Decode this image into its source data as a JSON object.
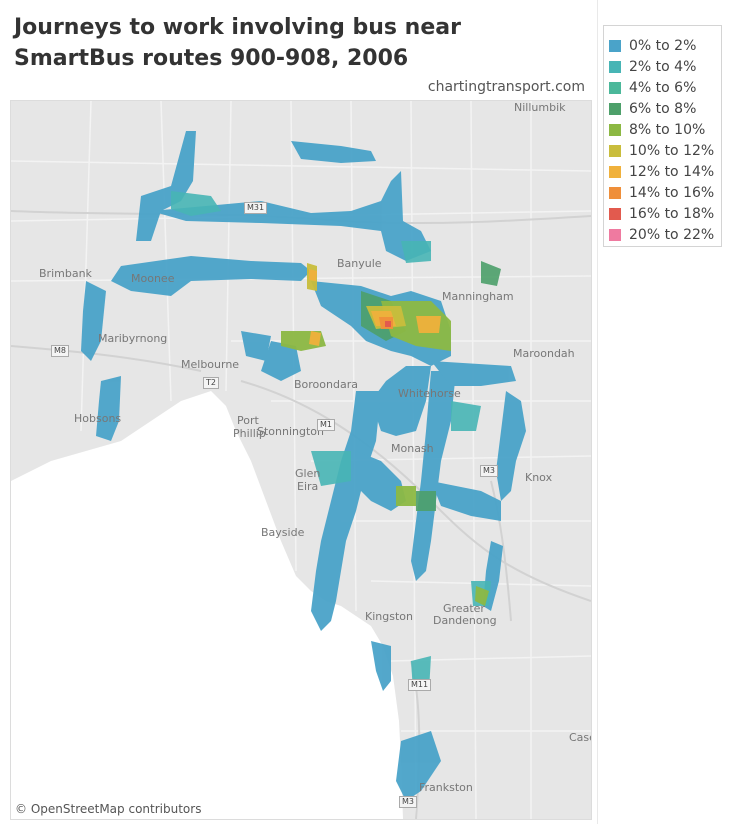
{
  "title": "Journeys to work involving bus near SmartBus routes 900-908, 2006",
  "credit": "chartingtransport.com",
  "attribution": "© OpenStreetMap contributors",
  "legend": [
    {
      "label": "0% to 2%",
      "color": "#4aa3c9"
    },
    {
      "label": "2% to 4%",
      "color": "#47b5b5"
    },
    {
      "label": "4% to 6%",
      "color": "#4bb89a"
    },
    {
      "label": "6% to 8%",
      "color": "#4da06a"
    },
    {
      "label": "8% to 10%",
      "color": "#8cb843"
    },
    {
      "label": "10% to 12%",
      "color": "#c9bd3c"
    },
    {
      "label": "12% to 14%",
      "color": "#f0b13c"
    },
    {
      "label": "14% to 16%",
      "color": "#ef8f3a"
    },
    {
      "label": "16% to 18%",
      "color": "#e25a4e"
    },
    {
      "label": "20% to 22%",
      "color": "#ef7aa0"
    }
  ],
  "places": [
    {
      "name": "Nillumbik"
    },
    {
      "name": "Brimbank"
    },
    {
      "name": "Moonee"
    },
    {
      "name": "Banyule"
    },
    {
      "name": "Manningham"
    },
    {
      "name": "Maribyrnong"
    },
    {
      "name": "Melbourne"
    },
    {
      "name": "Boroondara"
    },
    {
      "name": "Whitehorse"
    },
    {
      "name": "Maroondah"
    },
    {
      "name": "Hobsons"
    },
    {
      "name": "Port"
    },
    {
      "name": "Phillip"
    },
    {
      "name": "Stonnington"
    },
    {
      "name": "Glen"
    },
    {
      "name": "Eira"
    },
    {
      "name": "Monash"
    },
    {
      "name": "Knox"
    },
    {
      "name": "Bayside"
    },
    {
      "name": "Kingston"
    },
    {
      "name": "Greater"
    },
    {
      "name": "Dandenong"
    },
    {
      "name": "Casey"
    },
    {
      "name": "Frankston"
    }
  ],
  "shields": [
    "M31",
    "M8",
    "T2",
    "M1",
    "M3",
    "M11",
    "M3",
    "M3"
  ]
}
